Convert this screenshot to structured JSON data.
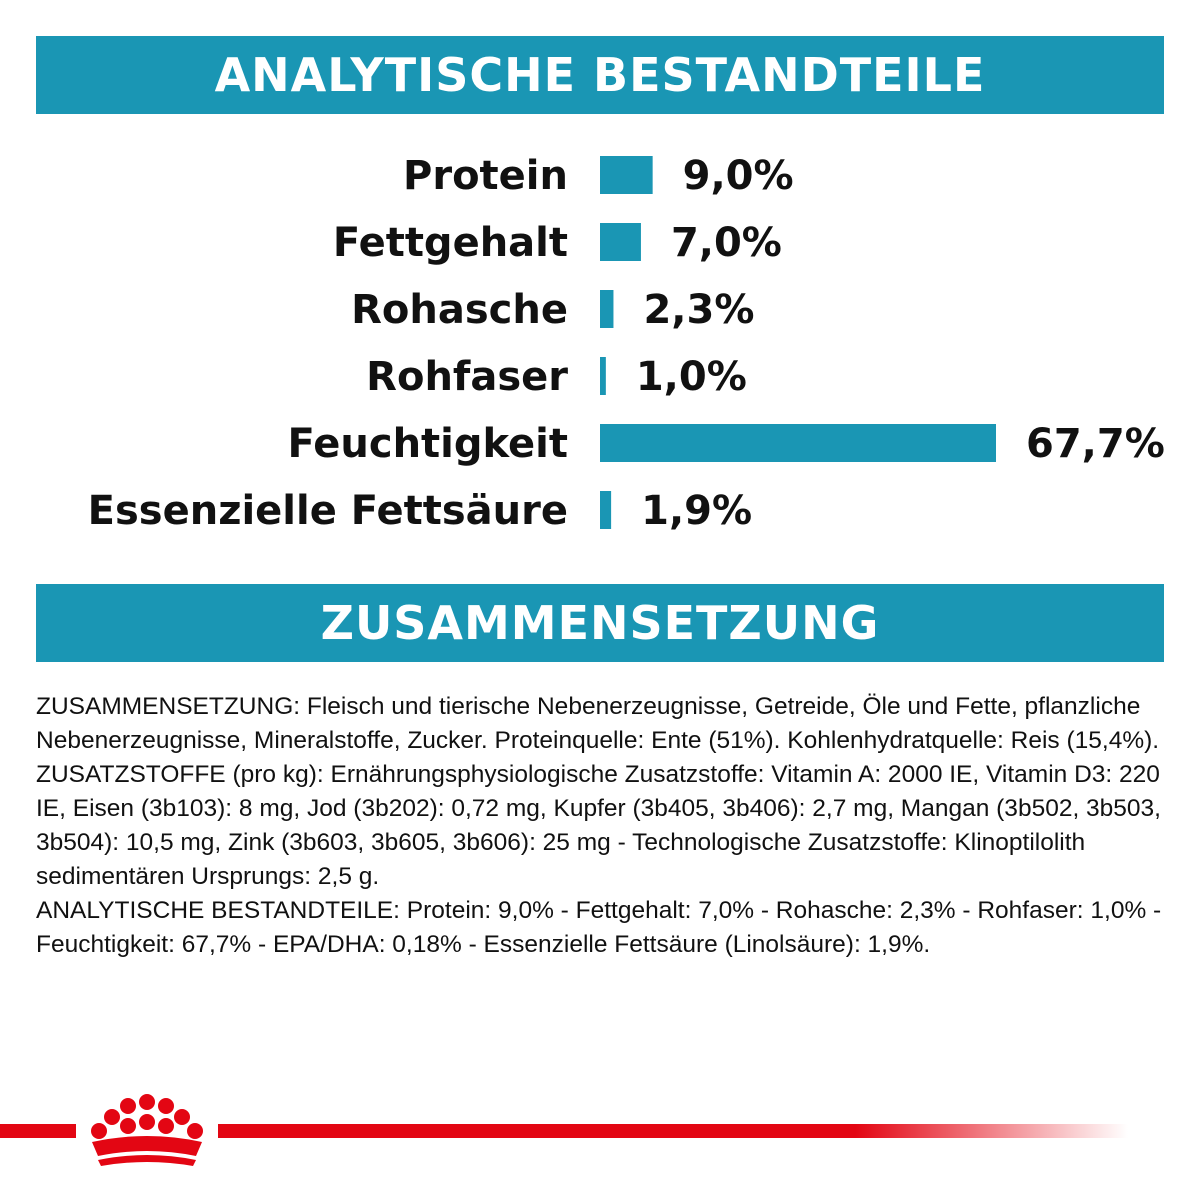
{
  "sections": {
    "analytic_title": "ANALYTISCHE BESTANDTEILE",
    "composition_title": "ZUSAMMENSETZUNG"
  },
  "chart_data": {
    "type": "bar",
    "orientation": "horizontal",
    "categories": [
      "Protein",
      "Fettgehalt",
      "Rohasche",
      "Rohfaser",
      "Feuchtigkeit",
      "Essenzielle Fettsäure"
    ],
    "values": [
      9.0,
      7.0,
      2.3,
      1.0,
      67.7,
      1.9
    ],
    "value_labels": [
      "9,0%",
      "7,0%",
      "2,3%",
      "1,0%",
      "67,7%",
      "1,9%"
    ],
    "bar_color": "#1a96b4",
    "xlim": [
      0,
      67.7
    ],
    "grid": false
  },
  "composition": {
    "paragraphs": [
      "ZUSAMMENSETZUNG: Fleisch und tierische Nebenerzeugnisse, Getreide, Öle und Fette, pflanzliche Nebenerzeugnisse, Mineralstoffe, Zucker. Proteinquelle: Ente (51%). Kohlenhydratquelle: Reis (15,4%).",
      "ZUSATZSTOFFE (pro kg): Ernährungsphysiologische Zusatzstoffe: Vitamin A: 2000 IE, Vitamin D3: 220 IE, Eisen (3b103): 8 mg, Jod (3b202): 0,72 mg, Kupfer (3b405, 3b406): 2,7 mg, Mangan (3b502, 3b503, 3b504): 10,5 mg, Zink (3b603, 3b605, 3b606): 25 mg - Technologische Zusatzstoffe: Klinoptilolith sedimentären Ursprungs: 2,5 g.",
      "ANALYTISCHE BESTANDTEILE: Protein: 9,0% - Fettgehalt: 7,0% - Rohasche: 2,3% - Rohfaser: 1,0% - Feuchtigkeit: 67,7% - EPA/DHA: 0,18% - Essenzielle Fettsäure (Linolsäure): 1,9%."
    ]
  },
  "colors": {
    "accent": "#1a96b4",
    "brand_red": "#e30613"
  },
  "icons": {
    "footer": "royal-canin-crown-logo"
  }
}
